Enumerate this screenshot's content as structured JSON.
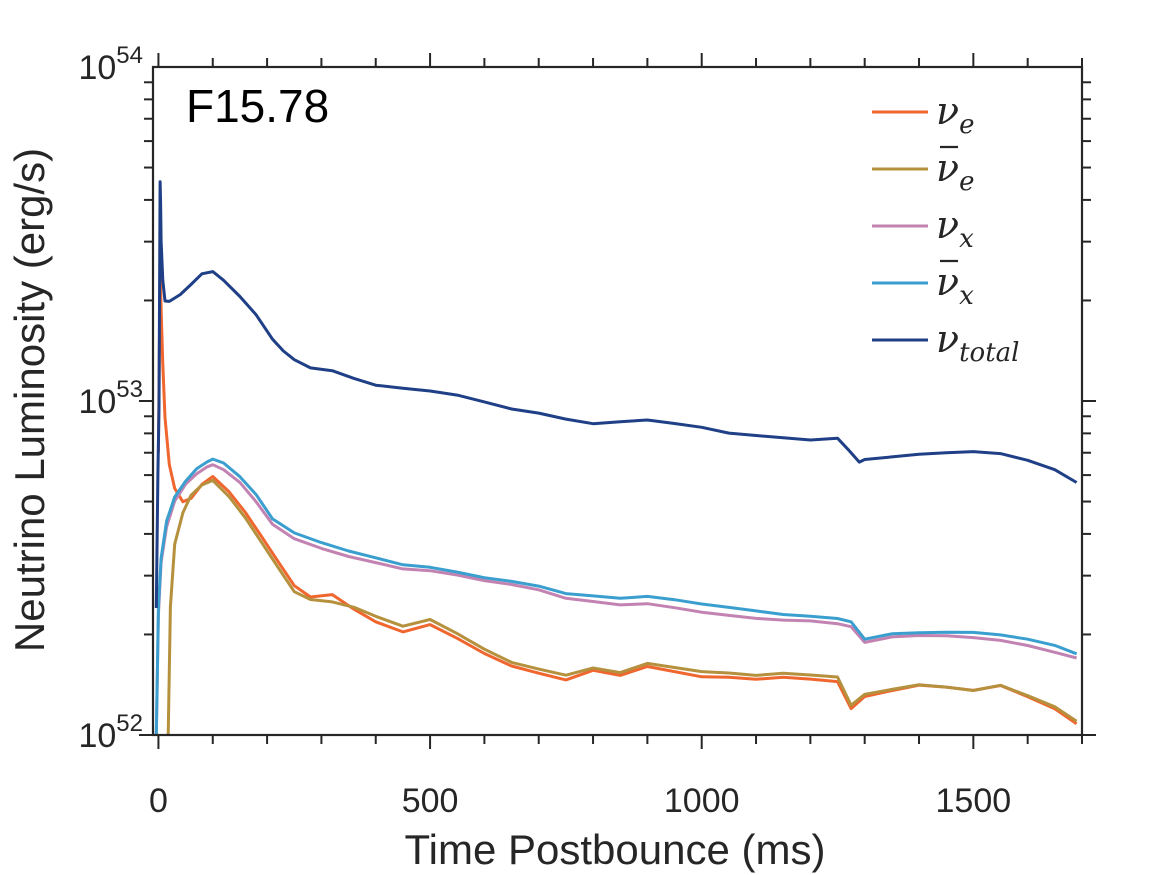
{
  "chart_data": {
    "type": "line",
    "panel_label": "F15.78",
    "xlabel": "Time Postbounce (ms)",
    "ylabel": "Neutrino Luminosity (erg/s)",
    "xlim": [
      -10,
      1700
    ],
    "ylim": [
      1e+52,
      1e+54
    ],
    "yscale": "log",
    "xticks": [
      0,
      500,
      1000,
      1500
    ],
    "xtick_labels": [
      "0",
      "500",
      "1000",
      "1500"
    ],
    "yticks": [
      1e+52,
      1e+53,
      1e+54
    ],
    "ytick_labels": [
      {
        "base": "10",
        "exp": "52"
      },
      {
        "base": "10",
        "exp": "53"
      },
      {
        "base": "10",
        "exp": "54"
      }
    ],
    "legend_position": "top-right",
    "series": [
      {
        "name": "ν_e",
        "label_main": "ν",
        "label_sub": "e",
        "bar": false,
        "color": "#f0662f",
        "x": [
          0,
          3,
          5,
          8,
          12,
          20,
          30,
          45,
          60,
          80,
          100,
          130,
          160,
          190,
          220,
          250,
          280,
          320,
          360,
          400,
          450,
          500,
          550,
          600,
          650,
          700,
          750,
          800,
          850,
          900,
          950,
          1000,
          1050,
          1100,
          1150,
          1200,
          1250,
          1275,
          1300,
          1350,
          1400,
          1450,
          1500,
          1550,
          1600,
          1650,
          1690
        ],
        "y": [
          7e+52,
          2.5e+53,
          1.9e+53,
          1.3e+53,
          9e+52,
          6.5e+52,
          5.5e+52,
          5e+52,
          5.1e+52,
          5.6e+52,
          5.9e+52,
          5.3e+52,
          4.6e+52,
          3.9e+52,
          3.3e+52,
          2.8e+52,
          2.6e+52,
          2.65e+52,
          2.4e+52,
          2.2e+52,
          2.05e+52,
          2.15e+52,
          1.95e+52,
          1.75e+52,
          1.6e+52,
          1.52e+52,
          1.45e+52,
          1.55e+52,
          1.5e+52,
          1.6e+52,
          1.55e+52,
          1.5e+52,
          1.5e+52,
          1.48e+52,
          1.5e+52,
          1.48e+52,
          1.45e+52,
          1.2e+52,
          1.3e+52,
          1.35e+52,
          1.4e+52,
          1.38e+52,
          1.35e+52,
          1.4e+52,
          1.3e+52,
          1.2e+52,
          1.08e+52
        ]
      },
      {
        "name": "ν̄_e",
        "label_main": "ν",
        "label_sub": "e",
        "bar": true,
        "color": "#b5913e",
        "x": [
          18,
          22,
          30,
          45,
          60,
          80,
          100,
          130,
          160,
          190,
          220,
          250,
          280,
          320,
          360,
          400,
          450,
          500,
          550,
          600,
          650,
          700,
          750,
          800,
          850,
          900,
          950,
          1000,
          1050,
          1100,
          1150,
          1200,
          1250,
          1275,
          1300,
          1350,
          1400,
          1450,
          1500,
          1550,
          1600,
          1650,
          1690
        ],
        "y": [
          1e+52,
          2.4e+52,
          3.7e+52,
          4.6e+52,
          5.2e+52,
          5.6e+52,
          5.8e+52,
          5.2e+52,
          4.5e+52,
          3.8e+52,
          3.2e+52,
          2.7e+52,
          2.55e+52,
          2.5e+52,
          2.4e+52,
          2.25e+52,
          2.1e+52,
          2.2e+52,
          2e+52,
          1.8e+52,
          1.65e+52,
          1.58e+52,
          1.52e+52,
          1.6e+52,
          1.55e+52,
          1.65e+52,
          1.6e+52,
          1.55e+52,
          1.53e+52,
          1.5e+52,
          1.52e+52,
          1.5e+52,
          1.48e+52,
          1.22e+52,
          1.32e+52,
          1.37e+52,
          1.42e+52,
          1.4e+52,
          1.37e+52,
          1.42e+52,
          1.32e+52,
          1.22e+52,
          1.1e+52
        ]
      },
      {
        "name": "ν_x",
        "label_main": "ν",
        "label_sub": "x",
        "bar": false,
        "color": "#c283b2",
        "x": [
          -4,
          0,
          5,
          15,
          30,
          50,
          70,
          90,
          100,
          120,
          150,
          180,
          210,
          250,
          300,
          350,
          400,
          450,
          500,
          550,
          600,
          650,
          700,
          750,
          800,
          850,
          900,
          950,
          1000,
          1050,
          1100,
          1150,
          1200,
          1250,
          1275,
          1300,
          1350,
          1400,
          1450,
          1500,
          1550,
          1600,
          1650,
          1690
        ],
        "y": [
          1e+52,
          2.3e+52,
          3.3e+52,
          4.2e+52,
          5e+52,
          5.6e+52,
          6e+52,
          6.3e+52,
          6.4e+52,
          6.2e+52,
          5.7e+52,
          5e+52,
          4.3e+52,
          3.9e+52,
          3.65e+52,
          3.45e+52,
          3.3e+52,
          3.15e+52,
          3.1e+52,
          3e+52,
          2.88e+52,
          2.8e+52,
          2.7e+52,
          2.55e+52,
          2.5e+52,
          2.45e+52,
          2.48e+52,
          2.42e+52,
          2.35e+52,
          2.3e+52,
          2.25e+52,
          2.22e+52,
          2.2e+52,
          2.15e+52,
          2.1e+52,
          1.88e+52,
          1.95e+52,
          1.97e+52,
          1.97e+52,
          1.95e+52,
          1.92e+52,
          1.86e+52,
          1.78e+52,
          1.7e+52
        ]
      },
      {
        "name": "ν̄_x",
        "label_main": "ν",
        "label_sub": "x",
        "bar": true,
        "color": "#3a9fcf",
        "x": [
          -4,
          0,
          5,
          15,
          30,
          50,
          70,
          90,
          100,
          120,
          150,
          180,
          210,
          250,
          300,
          350,
          400,
          450,
          500,
          550,
          600,
          650,
          700,
          750,
          800,
          850,
          900,
          950,
          1000,
          1050,
          1100,
          1150,
          1200,
          1250,
          1275,
          1300,
          1350,
          1400,
          1450,
          1500,
          1550,
          1600,
          1650,
          1690
        ],
        "y": [
          1e+52,
          2.4e+52,
          3.4e+52,
          4.4e+52,
          5.2e+52,
          5.8e+52,
          6.3e+52,
          6.6e+52,
          6.7e+52,
          6.5e+52,
          5.9e+52,
          5.2e+52,
          4.4e+52,
          4e+52,
          3.75e+52,
          3.55e+52,
          3.4e+52,
          3.25e+52,
          3.2e+52,
          3.1e+52,
          2.98e+52,
          2.9e+52,
          2.8e+52,
          2.65e+52,
          2.6e+52,
          2.55e+52,
          2.58e+52,
          2.52e+52,
          2.45e+52,
          2.4e+52,
          2.35e+52,
          2.3e+52,
          2.28e+52,
          2.25e+52,
          2.2e+52,
          1.95e+52,
          2.02e+52,
          2.03e+52,
          2.03e+52,
          2.02e+52,
          1.98e+52,
          1.92e+52,
          1.84e+52,
          1.75e+52
        ]
      },
      {
        "name": "ν_total",
        "label_main": "ν",
        "label_sub": "total",
        "bar": false,
        "color": "#1f3f86",
        "x": [
          -4,
          -1,
          1,
          3,
          4,
          5,
          8,
          12,
          20,
          40,
          60,
          80,
          100,
          120,
          150,
          180,
          210,
          230,
          250,
          280,
          320,
          360,
          400,
          450,
          500,
          550,
          600,
          650,
          700,
          750,
          800,
          850,
          900,
          950,
          1000,
          1050,
          1100,
          1150,
          1200,
          1250,
          1270,
          1290,
          1300,
          1350,
          1400,
          1450,
          1500,
          1550,
          1600,
          1650,
          1690
        ],
        "y": [
          2.4e+52,
          6e+52,
          9.5e+52,
          4.5e+53,
          3.9e+53,
          3e+53,
          2.3e+53,
          2e+53,
          2e+53,
          2.1e+53,
          2.25e+53,
          2.42e+53,
          2.45e+53,
          2.3e+53,
          2.05e+53,
          1.8e+53,
          1.52e+53,
          1.4e+53,
          1.32e+53,
          1.25e+53,
          1.23e+53,
          1.17e+53,
          1.12e+53,
          1.1e+53,
          1.08e+53,
          1.05e+53,
          1e+53,
          9.5e+52,
          9.2e+52,
          8.8e+52,
          8.5e+52,
          8.6e+52,
          8.7e+52,
          8.5e+52,
          8.3e+52,
          8e+52,
          7.9e+52,
          7.8e+52,
          7.7e+52,
          7.8e+52,
          7.2e+52,
          6.6e+52,
          6.7e+52,
          6.8e+52,
          6.9e+52,
          6.95e+52,
          7e+52,
          6.9e+52,
          6.6e+52,
          6.2e+52,
          5.7e+52
        ]
      }
    ]
  }
}
